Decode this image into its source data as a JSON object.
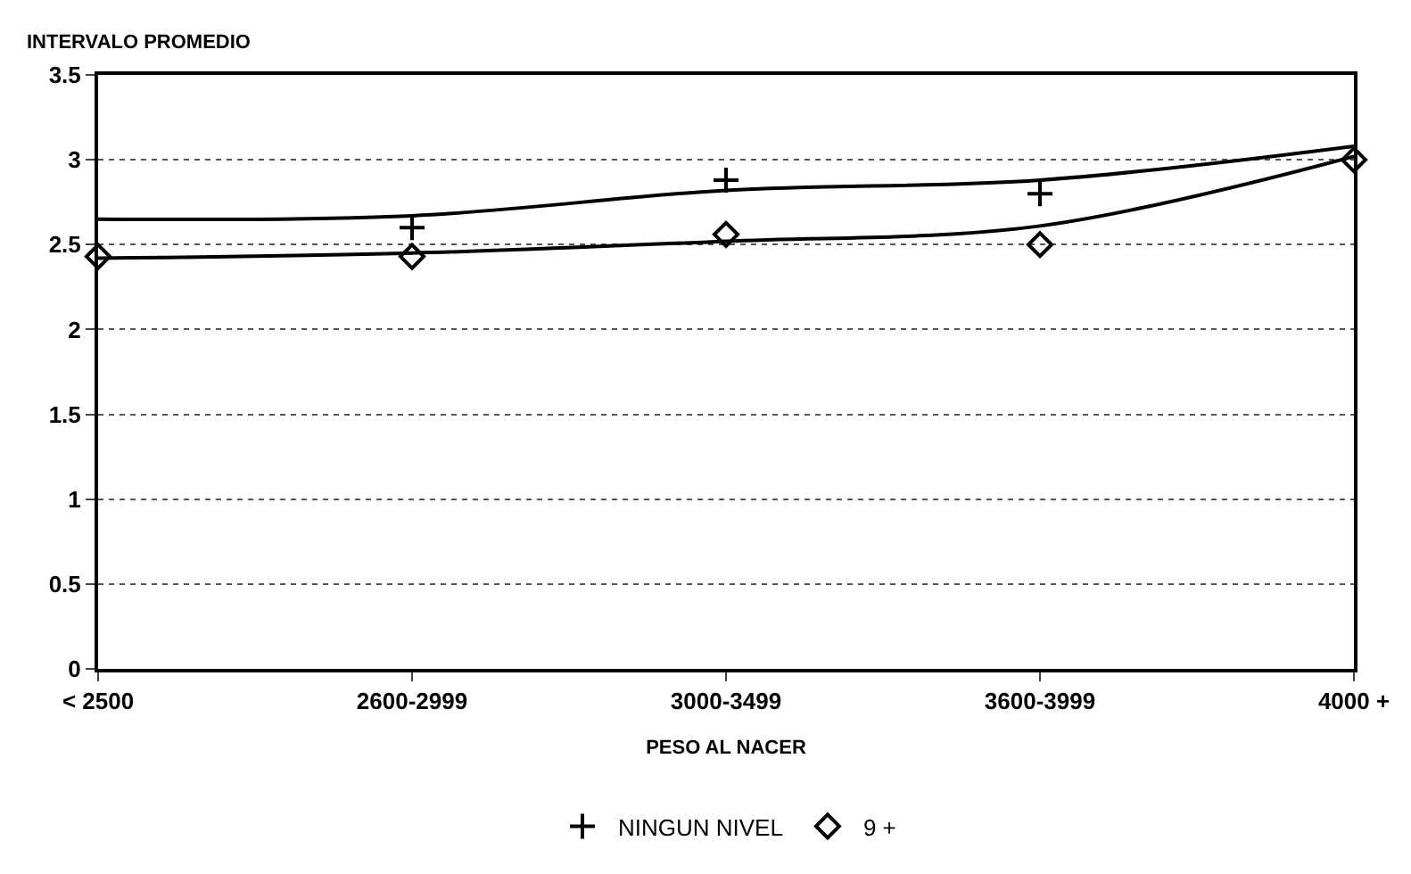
{
  "chart_data": {
    "type": "line",
    "ylabel": "INTERVALO PROMEDIO",
    "xlabel": "PESO AL NACER",
    "categories": [
      "< 2500",
      "2600-2999",
      "3000-3499",
      "3600-3999",
      "4000 +"
    ],
    "series": [
      {
        "name": "NINGUN NIVEL",
        "type": "scatter",
        "marker": "cross",
        "color": "#000000",
        "values": [
          null,
          2.6,
          2.88,
          2.8,
          null
        ]
      },
      {
        "name": "9 +",
        "type": "scatter",
        "marker": "diamond",
        "color": "#000000",
        "values": [
          2.43,
          2.43,
          2.56,
          2.5,
          3.0
        ]
      },
      {
        "marker": "none",
        "color": "#000000",
        "values": [
          2.65,
          2.67,
          2.82,
          2.88,
          3.08
        ]
      },
      {
        "marker": "none",
        "color": "#000000",
        "values": [
          2.42,
          2.45,
          2.52,
          2.61,
          3.02
        ]
      }
    ],
    "ylim": [
      0,
      3.5
    ],
    "yticks": [
      0,
      0.5,
      1,
      1.5,
      2,
      2.5,
      3,
      3.5
    ],
    "grid": "y",
    "legend": "bottom"
  }
}
